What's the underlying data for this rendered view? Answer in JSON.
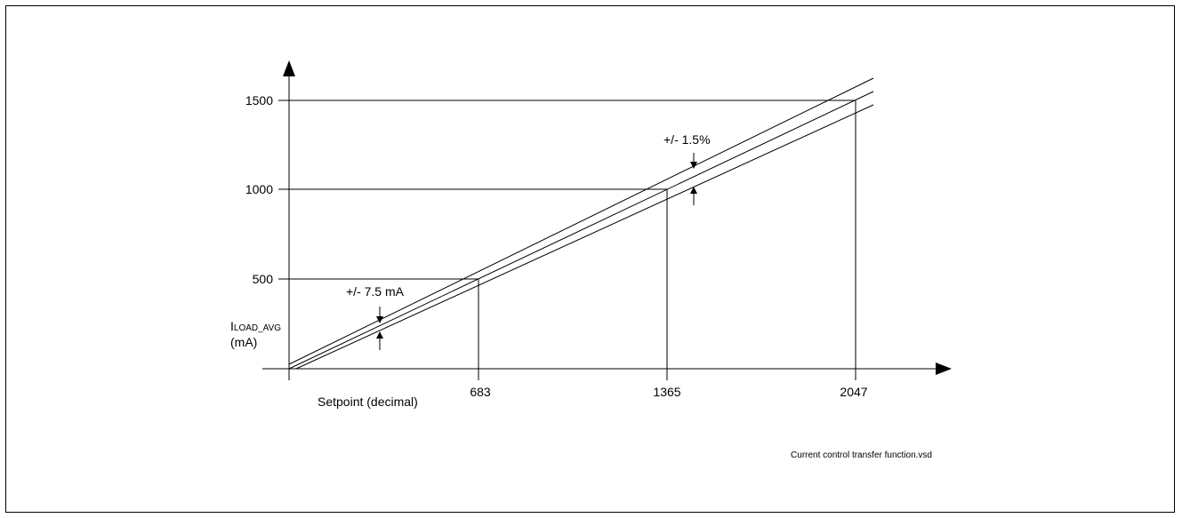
{
  "chart_data": {
    "type": "line",
    "xlabel": "Setpoint (decimal)",
    "ylabel_main": "I",
    "ylabel_sub": "LOAD_AVG",
    "ylabel_unit": "(mA)",
    "x_ticks": [
      683,
      1365,
      2047
    ],
    "y_ticks": [
      500,
      1000,
      1500
    ],
    "annotations": {
      "low_tolerance": "+/- 7.5 mA",
      "high_tolerance": "+/- 1.5%"
    },
    "series": [
      {
        "x": [
          0,
          2047
        ],
        "y": [
          0,
          1500
        ]
      }
    ]
  },
  "footer": {
    "filename": "Current control transfer function.vsd"
  }
}
